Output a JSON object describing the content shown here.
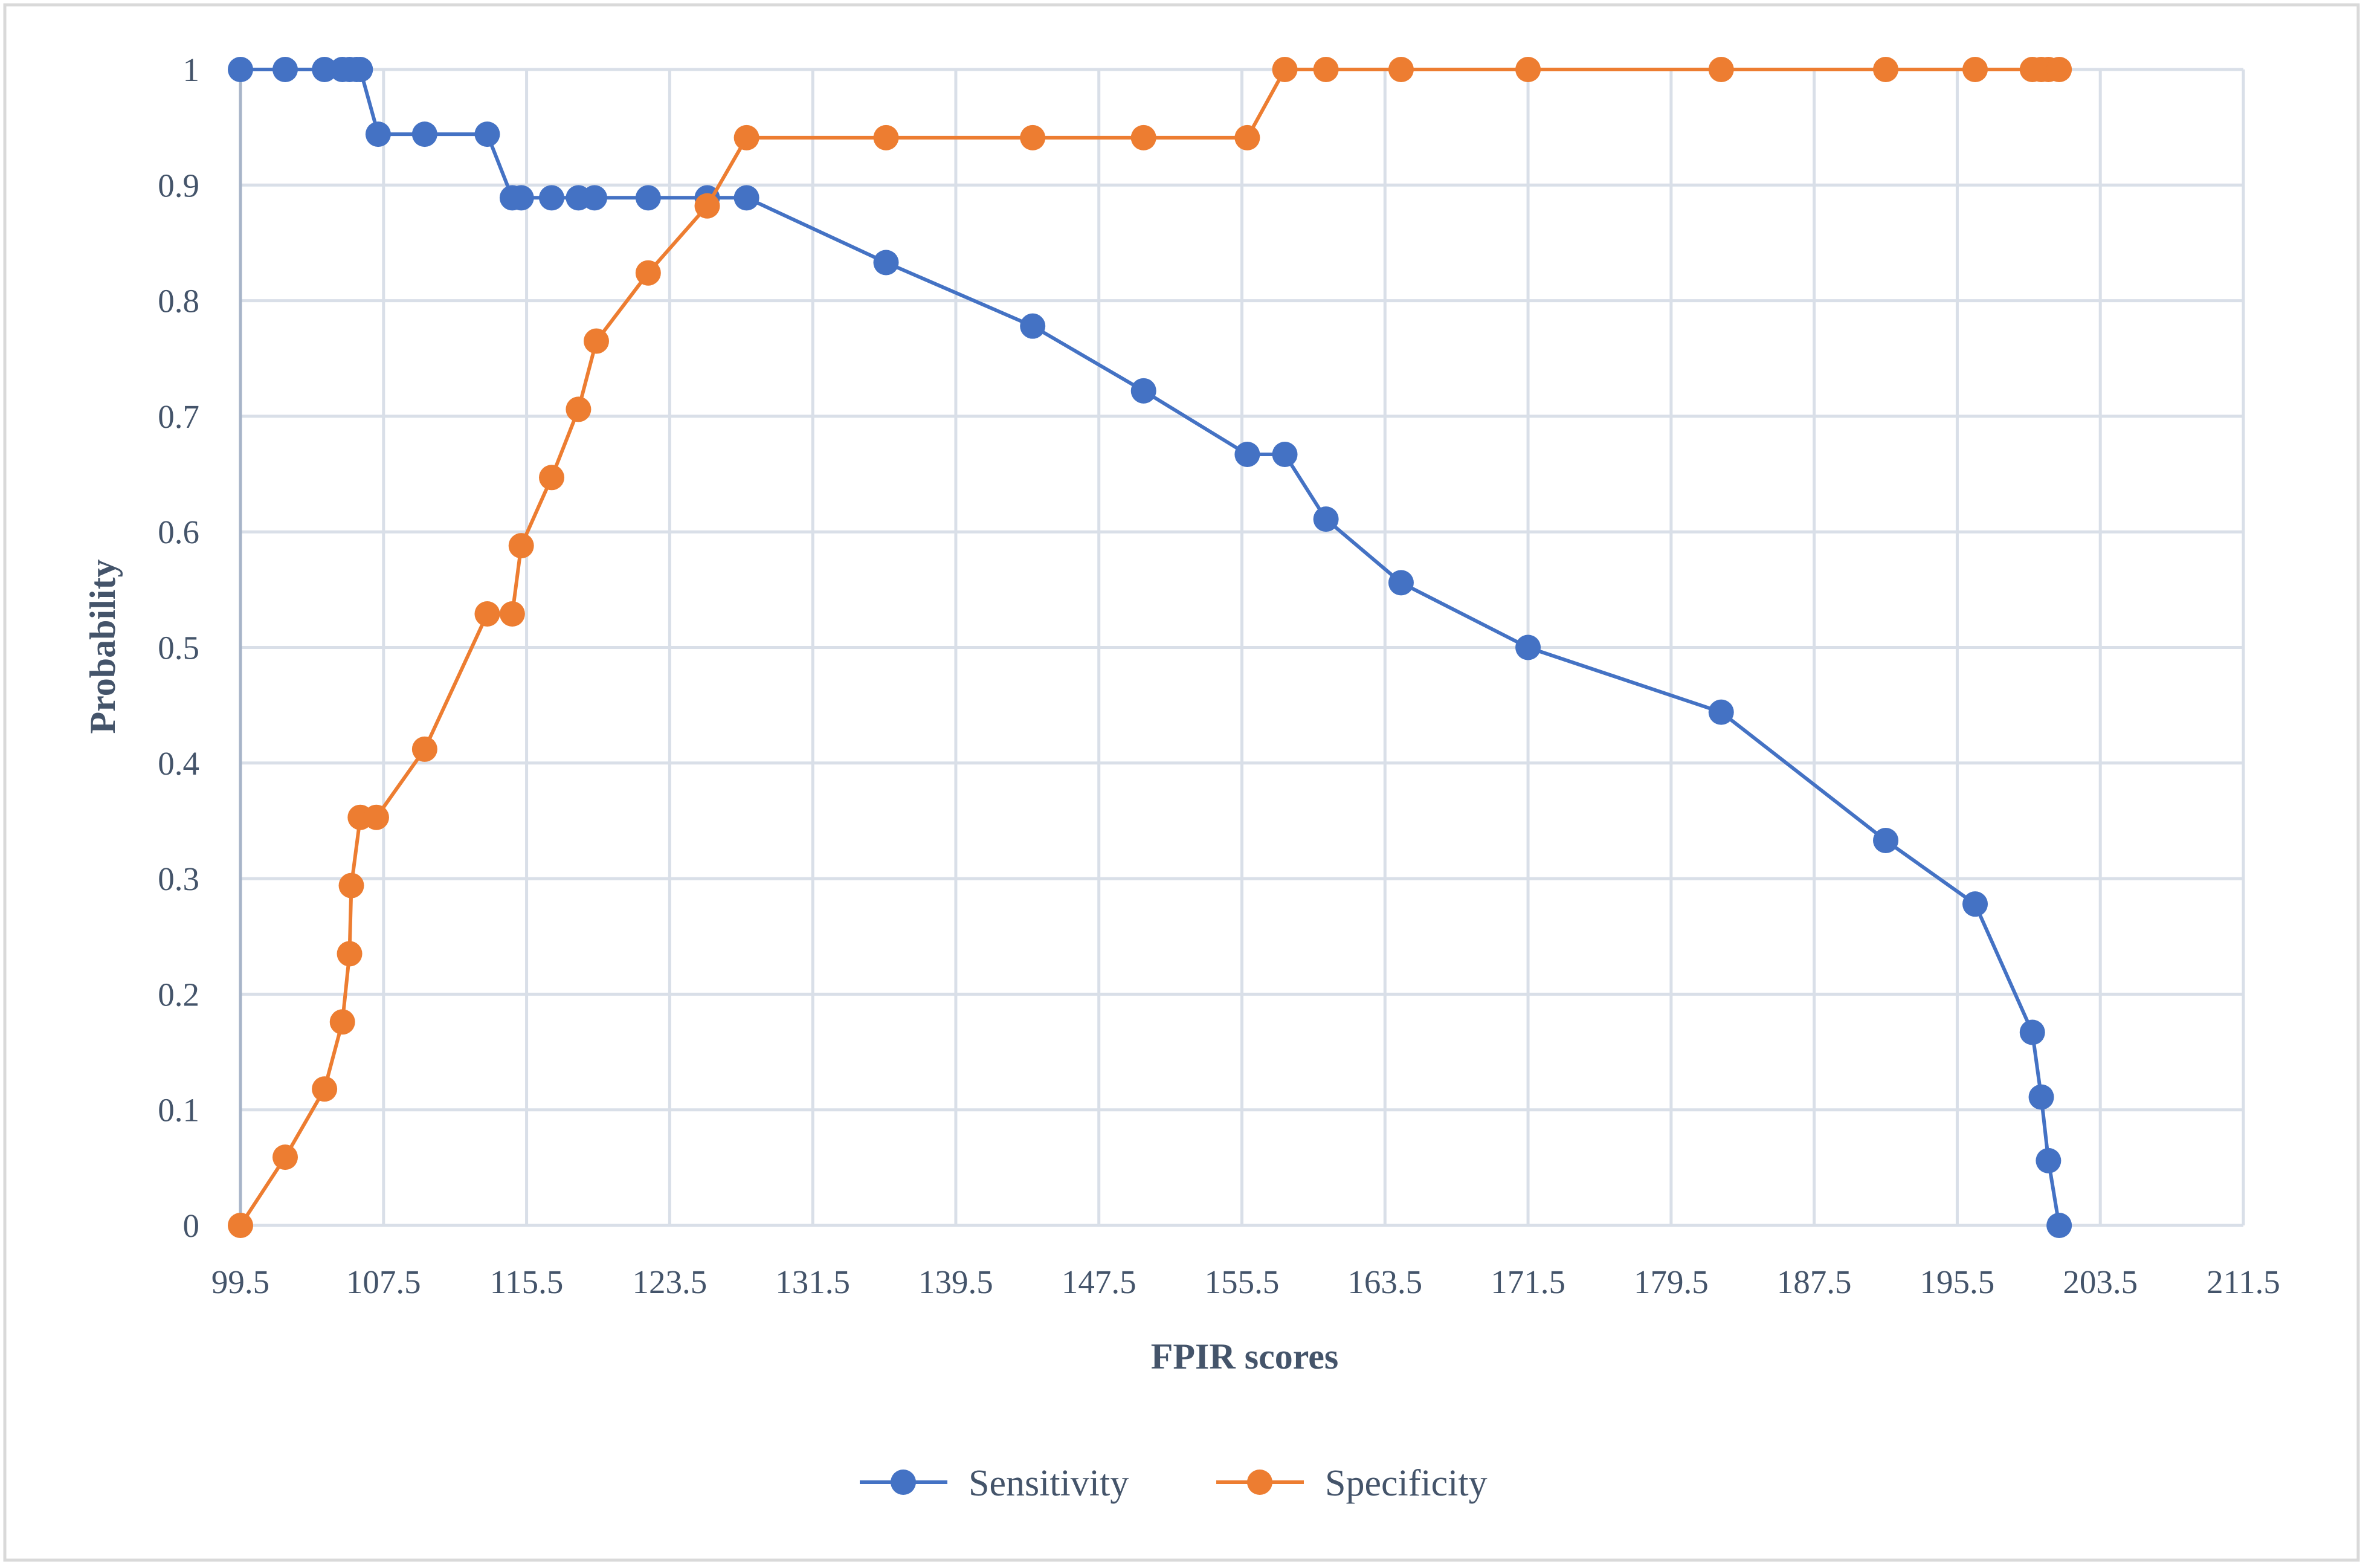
{
  "chart_data": {
    "type": "line",
    "title": "",
    "xlabel": "FPIR scores",
    "ylabel": "Probability",
    "xlim": [
      99.5,
      211.5
    ],
    "ylim": [
      0,
      1
    ],
    "x_ticks": [
      "99.5",
      "107.5",
      "115.5",
      "123.5",
      "131.5",
      "139.5",
      "147.5",
      "155.5",
      "163.5",
      "171.5",
      "179.5",
      "187.5",
      "195.5",
      "203.5",
      "211.5"
    ],
    "y_ticks": [
      "0",
      "0.1",
      "0.2",
      "0.3",
      "0.4",
      "0.5",
      "0.6",
      "0.7",
      "0.8",
      "0.9",
      "1"
    ],
    "grid": true,
    "legend_position": "bottom",
    "series": [
      {
        "name": "Sensitivity",
        "color": "#4472c4",
        "x": [
          99.5,
          102,
          104.2,
          105.2,
          105.6,
          106,
          106.2,
          107.2,
          109.8,
          113.3,
          114.7,
          115.2,
          116.9,
          118.4,
          119.3,
          122.3,
          125.6,
          127.8,
          135.6,
          143.8,
          150,
          155.8,
          157.9,
          160.2,
          164.4,
          171.5,
          182.3,
          191.5,
          196.5,
          199.7,
          200.2,
          200.6,
          201.2
        ],
        "values": [
          1,
          1,
          1,
          1,
          1,
          1,
          1,
          0.944,
          0.944,
          0.944,
          0.889,
          0.889,
          0.889,
          0.889,
          0.889,
          0.889,
          0.889,
          0.889,
          0.833,
          0.778,
          0.722,
          0.667,
          0.667,
          0.611,
          0.556,
          0.5,
          0.444,
          0.333,
          0.278,
          0.167,
          0.111,
          0.056,
          0
        ]
      },
      {
        "name": "Specificity",
        "color": "#ed7d31",
        "x": [
          99.5,
          102,
          104.2,
          105.2,
          105.6,
          105.7,
          106.2,
          107.1,
          109.8,
          113.3,
          114.7,
          115.2,
          116.9,
          118.4,
          119.4,
          122.3,
          125.6,
          127.8,
          135.6,
          143.8,
          150,
          155.8,
          157.9,
          160.2,
          164.4,
          171.5,
          182.3,
          191.5,
          196.5,
          199.7,
          200.2,
          200.6,
          201.2
        ],
        "values": [
          0,
          0.059,
          0.118,
          0.176,
          0.235,
          0.294,
          0.353,
          0.353,
          0.412,
          0.529,
          0.529,
          0.588,
          0.647,
          0.706,
          0.765,
          0.824,
          0.882,
          0.941,
          0.941,
          0.941,
          0.941,
          0.941,
          1,
          1,
          1,
          1,
          1,
          1,
          1,
          1,
          1,
          1,
          1
        ]
      }
    ]
  }
}
